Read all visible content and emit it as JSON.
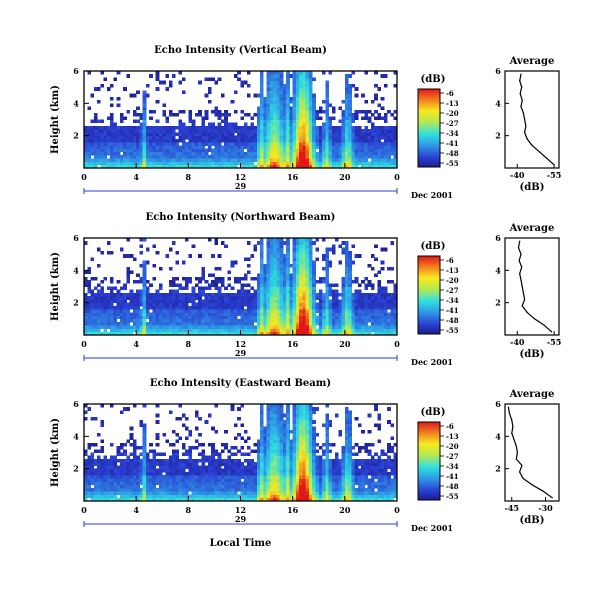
{
  "chart_data": [
    {
      "type": "heatmap",
      "title": "Echo Intensity (Vertical Beam)",
      "ylabel": "Height (km)",
      "y_ticks": [
        "2",
        "4",
        "6"
      ],
      "x_ticks": [
        "0",
        "4",
        "8",
        "12",
        "16",
        "20",
        "0"
      ],
      "date_row": {
        "day": "29",
        "month_year": "Dec 2001"
      },
      "xlim": [
        0,
        24
      ],
      "ylim": [
        0,
        6
      ],
      "colorbar": {
        "unit": "(dB)",
        "ticks": [
          "-6",
          "-13",
          "-20",
          "-27",
          "-34",
          "-41",
          "-48",
          "-55"
        ]
      },
      "profile": {
        "title": "Average",
        "xlabel": "(dB)",
        "x_ticks": [
          "-40",
          "-55"
        ],
        "y_ticks": [
          "2",
          "4",
          "6"
        ],
        "xlim": [
          -35,
          -57
        ],
        "ylim": [
          0,
          6
        ],
        "points": [
          [
            -41.5,
            5.8
          ],
          [
            -41.0,
            5.4
          ],
          [
            -41.8,
            5.0
          ],
          [
            -41.2,
            4.6
          ],
          [
            -42.0,
            4.2
          ],
          [
            -41.5,
            3.8
          ],
          [
            -42.5,
            3.4
          ],
          [
            -43.0,
            3.0
          ],
          [
            -43.5,
            2.6
          ],
          [
            -43.0,
            2.2
          ],
          [
            -44.0,
            1.8
          ],
          [
            -46.0,
            1.4
          ],
          [
            -49.0,
            1.0
          ],
          [
            -52.0,
            0.6
          ],
          [
            -55.0,
            0.2
          ]
        ]
      }
    },
    {
      "type": "heatmap",
      "title": "Echo Intensity (Northward Beam)",
      "ylabel": "Height (km)",
      "y_ticks": [
        "2",
        "4",
        "6"
      ],
      "x_ticks": [
        "0",
        "4",
        "8",
        "12",
        "16",
        "20",
        "0"
      ],
      "date_row": {
        "day": "29",
        "month_year": "Dec 2001"
      },
      "xlim": [
        0,
        24
      ],
      "ylim": [
        0,
        6
      ],
      "colorbar": {
        "unit": "(dB)",
        "ticks": [
          "-6",
          "-13",
          "-20",
          "-27",
          "-34",
          "-41",
          "-48",
          "-55"
        ]
      },
      "profile": {
        "title": "Average",
        "xlabel": "(dB)",
        "x_ticks": [
          "-40",
          "-55"
        ],
        "y_ticks": [
          "2",
          "4",
          "6"
        ],
        "xlim": [
          -35,
          -57
        ],
        "ylim": [
          0,
          6
        ],
        "points": [
          [
            -41.0,
            5.8
          ],
          [
            -40.5,
            5.4
          ],
          [
            -41.5,
            5.0
          ],
          [
            -40.8,
            4.6
          ],
          [
            -41.8,
            4.2
          ],
          [
            -41.0,
            3.8
          ],
          [
            -41.5,
            3.4
          ],
          [
            -42.0,
            3.0
          ],
          [
            -42.5,
            2.6
          ],
          [
            -43.0,
            2.2
          ],
          [
            -42.0,
            1.8
          ],
          [
            -44.0,
            1.4
          ],
          [
            -47.0,
            1.0
          ],
          [
            -51.0,
            0.6
          ],
          [
            -54.0,
            0.2
          ]
        ]
      }
    },
    {
      "type": "heatmap",
      "title": "Echo Intensity (Eastward Beam)",
      "ylabel": "Height (km)",
      "xlabel": "Local Time",
      "y_ticks": [
        "2",
        "4",
        "6"
      ],
      "x_ticks": [
        "0",
        "4",
        "8",
        "12",
        "16",
        "20",
        "0"
      ],
      "date_row": {
        "day": "29",
        "month_year": "Dec 2001"
      },
      "xlim": [
        0,
        24
      ],
      "ylim": [
        0,
        6
      ],
      "colorbar": {
        "unit": "(dB)",
        "ticks": [
          "-6",
          "-13",
          "-20",
          "-27",
          "-34",
          "-41",
          "-48",
          "-55"
        ]
      },
      "profile": {
        "title": "Average",
        "xlabel": "(dB)",
        "x_ticks": [
          "-45",
          "-30"
        ],
        "y_ticks": [
          "2",
          "4",
          "6"
        ],
        "xlim": [
          -48,
          -24
        ],
        "ylim": [
          0,
          6
        ],
        "points": [
          [
            -46.5,
            5.8
          ],
          [
            -46.0,
            5.4
          ],
          [
            -45.0,
            5.0
          ],
          [
            -44.5,
            4.6
          ],
          [
            -45.0,
            4.2
          ],
          [
            -44.0,
            3.8
          ],
          [
            -43.0,
            3.4
          ],
          [
            -42.5,
            3.0
          ],
          [
            -43.0,
            2.6
          ],
          [
            -40.5,
            2.2
          ],
          [
            -41.5,
            1.8
          ],
          [
            -40.0,
            1.4
          ],
          [
            -36.0,
            1.0
          ],
          [
            -31.0,
            0.6
          ],
          [
            -27.0,
            0.2
          ]
        ]
      }
    }
  ]
}
